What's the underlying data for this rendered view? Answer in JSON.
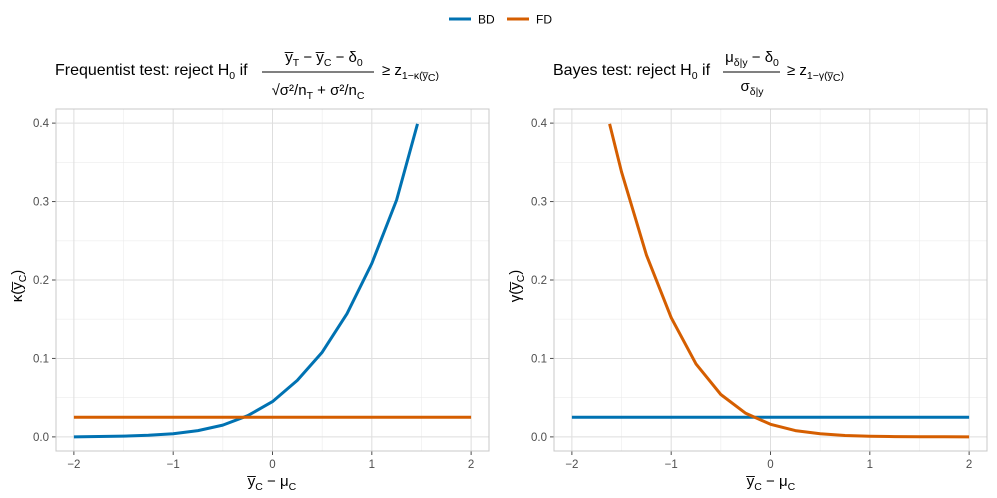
{
  "legend": {
    "items": [
      {
        "label": "BD",
        "color": "#0072B2"
      },
      {
        "label": "FD",
        "color": "#D55E00"
      }
    ],
    "position": "top"
  },
  "panels": [
    {
      "title_prefix": "Frequentist test: reject H",
      "title_sub": "0",
      "title_if": " if",
      "ge": "≥ z",
      "ge_sub": "1−κ(y̅",
      "ge_sub2": "C",
      "ge_close": ")",
      "frac_num": "y̅",
      "frac_num_sub1": "T",
      "frac_minus": " − y̅",
      "frac_num_sub2": "C",
      "frac_num_tail": " − δ",
      "frac_num_sub3": "0",
      "frac_den": "√σ²/n",
      "frac_den_sub1": "T",
      "frac_den_mid": " + σ²/n",
      "frac_den_sub2": "C",
      "ylabel": "κ(y̅",
      "ylabel_sub": "C",
      "ylabel_close": ")",
      "xlabel": "y̅",
      "xlabel_sub": "C",
      "xlabel_tail": " − μ",
      "xlabel_sub2": "C"
    },
    {
      "title_prefix": "Bayes test: reject H",
      "title_sub": "0",
      "title_if": " if",
      "ge": "≥ z",
      "ge_sub": "1−γ(y̅",
      "ge_sub2": "C",
      "ge_close": ")",
      "frac_num": "μ",
      "frac_num_sub1": "δ|y",
      "frac_num_tail": " − δ",
      "frac_num_sub3": "0",
      "frac_den": "σ",
      "frac_den_sub1": "δ|y",
      "ylabel": "γ(y̅",
      "ylabel_sub": "C",
      "ylabel_close": ")",
      "xlabel": "y̅",
      "xlabel_sub": "C",
      "xlabel_tail": " − μ",
      "xlabel_sub2": "C"
    }
  ],
  "chart_data": [
    {
      "type": "line",
      "xlim": [
        -2,
        2
      ],
      "ylim": [
        0,
        0.4
      ],
      "x_ticks": [
        "−2",
        "−1",
        "0",
        "1",
        "2"
      ],
      "y_ticks": [
        "0.0",
        "0.1",
        "0.2",
        "0.3",
        "0.4"
      ],
      "grid": true,
      "series": [
        {
          "name": "BD",
          "color": "#0072B2",
          "x": [
            -2.0,
            -1.75,
            -1.5,
            -1.25,
            -1.0,
            -0.75,
            -0.5,
            -0.25,
            0.0,
            0.25,
            0.5,
            0.75,
            1.0,
            1.25,
            1.46
          ],
          "y": [
            0.0,
            0.0005,
            0.001,
            0.002,
            0.004,
            0.008,
            0.015,
            0.027,
            0.045,
            0.072,
            0.108,
            0.157,
            0.221,
            0.302,
            0.399
          ]
        },
        {
          "name": "FD",
          "color": "#D55E00",
          "x": [
            -2.0,
            2.0
          ],
          "y": [
            0.025,
            0.025
          ]
        }
      ]
    },
    {
      "type": "line",
      "xlim": [
        -2,
        2
      ],
      "ylim": [
        0,
        0.4
      ],
      "x_ticks": [
        "−2",
        "−1",
        "0",
        "1",
        "2"
      ],
      "y_ticks": [
        "0.0",
        "0.1",
        "0.2",
        "0.3",
        "0.4"
      ],
      "grid": true,
      "series": [
        {
          "name": "BD",
          "color": "#0072B2",
          "x": [
            -2.0,
            2.0
          ],
          "y": [
            0.025,
            0.025
          ]
        },
        {
          "name": "FD",
          "color": "#D55E00",
          "x": [
            -1.62,
            -1.5,
            -1.25,
            -1.0,
            -0.75,
            -0.5,
            -0.25,
            0.0,
            0.25,
            0.5,
            0.75,
            1.0,
            1.25,
            1.5,
            1.75,
            2.0
          ],
          "y": [
            0.399,
            0.338,
            0.232,
            0.152,
            0.093,
            0.054,
            0.03,
            0.016,
            0.008,
            0.004,
            0.0018,
            0.0008,
            0.0004,
            0.0002,
            0.0001,
            0.0
          ]
        }
      ]
    }
  ]
}
